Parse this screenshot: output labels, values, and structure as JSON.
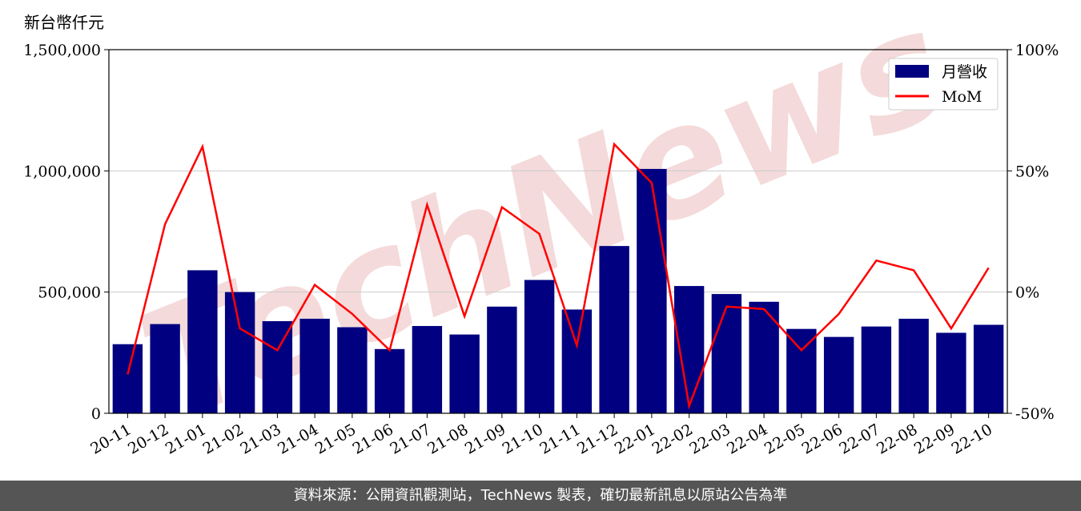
{
  "unit_label": "新台幣仟元",
  "footer_text": "資料來源：公開資訊觀測站，TechNews 製表，確切最新訊息以原站公告為準",
  "watermark_text": "TechNews",
  "colors": {
    "bar": "#000080",
    "line": "#ff0000",
    "watermark": "#f3d6d6",
    "grid": "#cccccc",
    "footer_bg": "#555555"
  },
  "chart_data": {
    "type": "bar",
    "categories": [
      "20-11",
      "20-12",
      "21-01",
      "21-02",
      "21-03",
      "21-04",
      "21-05",
      "21-06",
      "21-07",
      "21-08",
      "21-09",
      "21-10",
      "21-11",
      "21-12",
      "22-01",
      "22-02",
      "22-03",
      "22-04",
      "22-05",
      "22-06",
      "22-07",
      "22-08",
      "22-09",
      "22-10"
    ],
    "series": [
      {
        "name": "月營收",
        "axis": "left",
        "type": "bar",
        "values": [
          285000,
          368000,
          590000,
          500000,
          380000,
          390000,
          355000,
          265000,
          360000,
          325000,
          440000,
          550000,
          428000,
          690000,
          1008000,
          525000,
          492000,
          460000,
          348000,
          315000,
          358000,
          390000,
          332000,
          365000
        ]
      },
      {
        "name": "MoM",
        "axis": "right",
        "type": "line",
        "values": [
          -34,
          28,
          60,
          -15,
          -24,
          3,
          -9,
          -24,
          36,
          -10,
          35,
          24,
          -22,
          61,
          45,
          -47,
          -6,
          -7,
          -24,
          -9,
          13,
          9,
          -15,
          10
        ]
      }
    ],
    "ylim_left": [
      0,
      1500000
    ],
    "ylim_right": [
      -50,
      100
    ],
    "yticks_left": [
      "0",
      "500,000",
      "1,000,000",
      "1,500,000"
    ],
    "yticks_right": [
      "-50%",
      "0%",
      "50%",
      "100%"
    ],
    "grid": "horizontal",
    "legend_position": "top-right"
  }
}
